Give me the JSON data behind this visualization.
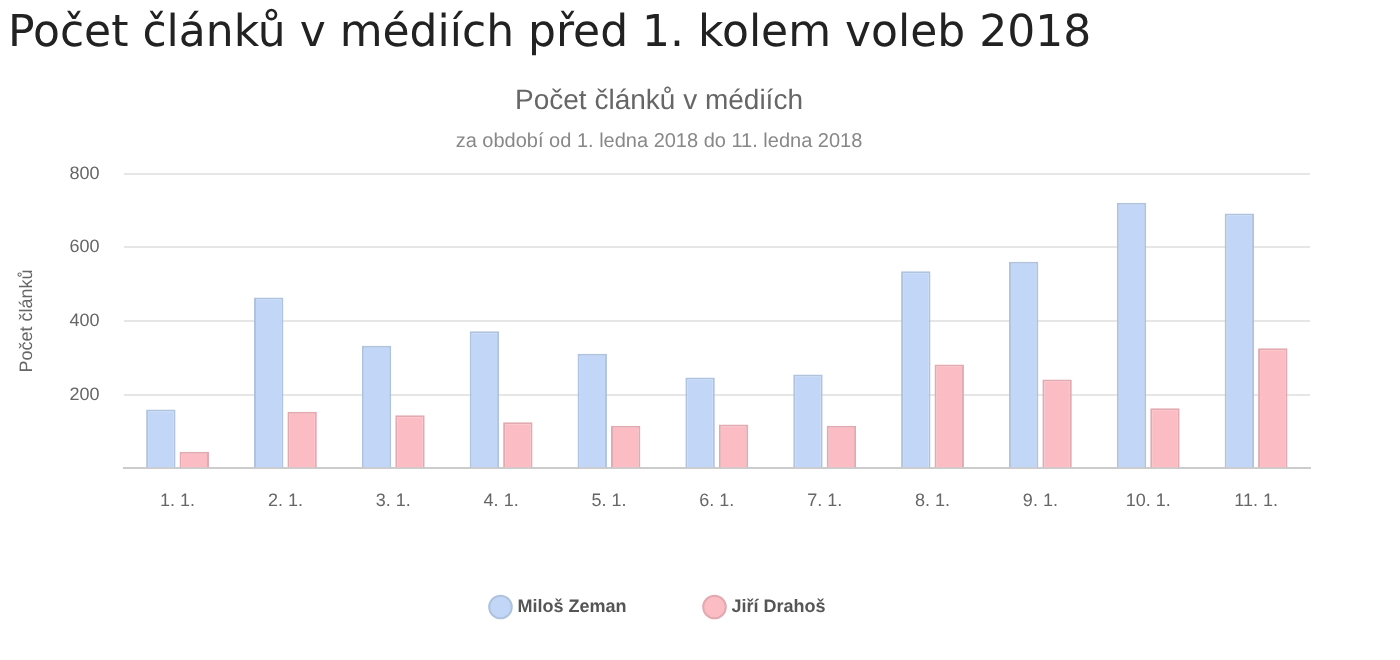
{
  "chart_data": {
    "type": "bar",
    "title": "Počet článků v médiích",
    "subtitle": "za období od 1. ledna 2018 do 11. ledna 2018",
    "ylabel": "Počet článků",
    "annotations": [
      "Počet článků v médiích před 1. kolem voleb 2018"
    ],
    "categories": [
      "1. 1.",
      "2. 1.",
      "3. 1.",
      "4. 1.",
      "5. 1.",
      "6. 1.",
      "7. 1.",
      "8. 1.",
      "9. 1.",
      "10. 1.",
      "11. 1."
    ],
    "series": [
      {
        "name": "Miloš Zeman",
        "color": "#c2d7f7",
        "values": [
          160,
          464,
          333,
          372,
          311,
          247,
          255,
          535,
          561,
          721,
          692
        ]
      },
      {
        "name": "Jiří Drahoš",
        "color": "#fbbcc3",
        "values": [
          45,
          154,
          144,
          125,
          116,
          119,
          116,
          282,
          241,
          163,
          326
        ]
      }
    ],
    "ylim": [
      0,
      800
    ],
    "yticks": [
      {
        "value": 0,
        "label": null
      },
      200,
      400,
      600,
      800
    ],
    "grid": "y",
    "legend": "bottom",
    "marker": "circle"
  }
}
